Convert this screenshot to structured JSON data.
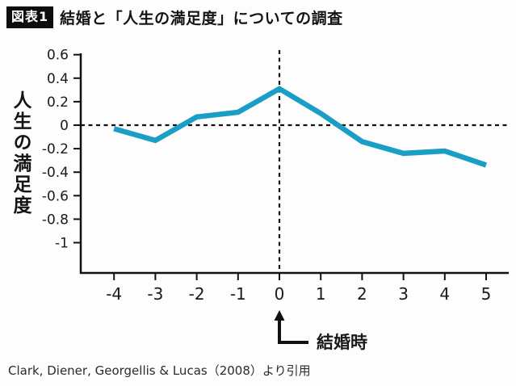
{
  "header": {
    "badge": "図表1",
    "title": "結婚と「人生の満足度」についての調査"
  },
  "chart_data": {
    "type": "line",
    "title": "結婚と「人生の満足度」についての調査",
    "xlabel": "",
    "ylabel": "人生の満足度",
    "x": [
      -4,
      -3,
      -2,
      -1,
      0,
      1,
      2,
      3,
      4,
      5
    ],
    "values": [
      -0.03,
      -0.13,
      0.07,
      0.11,
      0.31,
      0.1,
      -0.14,
      -0.24,
      -0.22,
      -0.34
    ],
    "series_name": "人生の満足度",
    "ylim": [
      -1,
      0.6
    ],
    "xlim": [
      -4.8,
      5.5
    ],
    "yticks": [
      0.6,
      0.4,
      0.2,
      0,
      -0.2,
      -0.4,
      -0.6,
      -0.8,
      -1
    ],
    "yticklabels": [
      "0.6",
      "0.4",
      "0.2",
      "0",
      "-0.2",
      "-0.4",
      "-0.6",
      "-0.8",
      "-1"
    ],
    "xticks": [
      -4,
      -3,
      -2,
      -1,
      0,
      1,
      2,
      3,
      4,
      5
    ],
    "xticklabels": [
      "-4",
      "-3",
      "-2",
      "-1",
      "0",
      "1",
      "2",
      "3",
      "4",
      "5"
    ],
    "grid": false,
    "legend_position": "none",
    "line_color": "#1b9ec5",
    "axis_color": "#111111",
    "reference_lines": {
      "horizontal_at_y": 0,
      "vertical_at_x": 0,
      "style": "dashed",
      "color": "#111111"
    },
    "annotation": {
      "label": "結婚時",
      "points_to_x": 0
    }
  },
  "footer": {
    "citation": "Clark, Diener, Georgellis & Lucas（2008）より引用"
  }
}
